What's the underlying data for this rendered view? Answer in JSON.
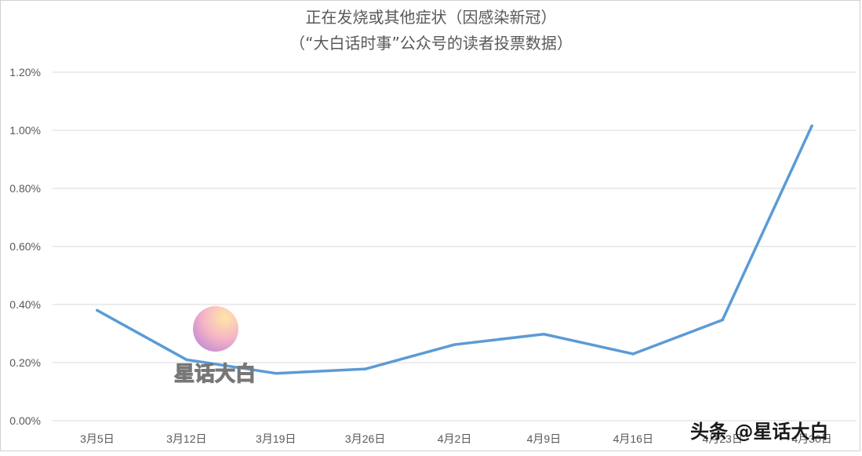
{
  "chart_data": {
    "type": "line",
    "title": "正在发烧或其他症状（因感染新冠）",
    "subtitle": "（“大白话时事”公众号的读者投票数据）",
    "categories": [
      "3月5日",
      "3月12日",
      "3月19日",
      "3月26日",
      "4月2日",
      "4月9日",
      "4月16日",
      "4月23日",
      "4月30日"
    ],
    "series": [
      {
        "values": [
          0.0038,
          0.0021,
          0.00163,
          0.00178,
          0.00262,
          0.00298,
          0.0023,
          0.00347,
          0.01015
        ]
      }
    ],
    "y_ticks": [
      "0.00%",
      "0.20%",
      "0.40%",
      "0.60%",
      "0.80%",
      "1.00%",
      "1.20%"
    ],
    "ylim": [
      0,
      0.012
    ],
    "grid": true,
    "color": "#5b9bd5"
  },
  "watermarks": {
    "center": "星话大白",
    "corner": "头条 @星话大白"
  }
}
